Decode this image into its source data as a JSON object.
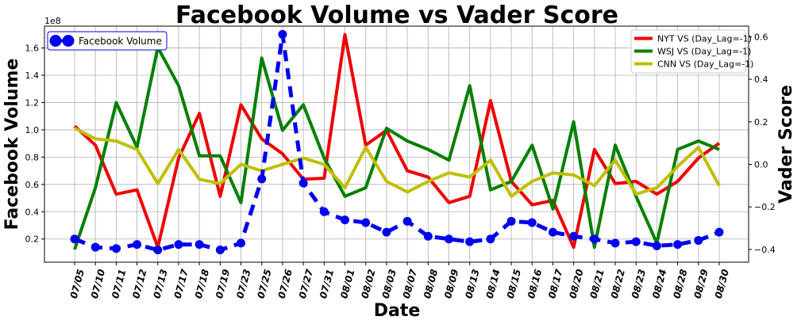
{
  "chart_data": {
    "type": "line",
    "title": "Facebook Volume vs Vader Score",
    "xlabel": "Date",
    "ylabel_left": "Facebook Volume",
    "ylabel_right": "Vader Score",
    "left_axis_multiplier": "1e8",
    "categories": [
      "07/05",
      "07/10",
      "07/11",
      "07/12",
      "07/13",
      "07/17",
      "07/18",
      "07/19",
      "07/23",
      "07/25",
      "07/26",
      "07/27",
      "07/31",
      "08/01",
      "08/02",
      "08/03",
      "08/07",
      "08/08",
      "08/09",
      "08/13",
      "08/14",
      "08/15",
      "08/16",
      "08/17",
      "08/20",
      "08/21",
      "08/22",
      "08/23",
      "08/24",
      "08/28",
      "08/29",
      "08/30"
    ],
    "ylim_left": [
      0.03,
      1.76
    ],
    "ylim_right": [
      -0.46,
      0.65
    ],
    "yticks_left": [
      "0.2",
      "0.4",
      "0.6",
      "0.8",
      "1.0",
      "1.2",
      "1.4",
      "1.6"
    ],
    "yticks_right": [
      "−0.4",
      "−0.2",
      "0.0",
      "0.2",
      "0.4",
      "0.6"
    ],
    "grid": true,
    "series_left": [
      {
        "name": "Facebook Volume",
        "color": "#0000ee",
        "values": [
          0.2,
          0.14,
          0.13,
          0.16,
          0.12,
          0.16,
          0.16,
          0.12,
          0.17,
          0.64,
          1.7,
          0.61,
          0.4,
          0.34,
          0.32,
          0.25,
          0.33,
          0.22,
          0.2,
          0.18,
          0.2,
          0.33,
          0.32,
          0.25,
          0.22,
          0.2,
          0.17,
          0.18,
          0.15,
          0.16,
          0.19,
          0.25
        ]
      }
    ],
    "series_right": [
      {
        "name": "NYT VS (Day_Lag=-1)",
        "color": "#ee0000",
        "values": [
          0.18,
          0.09,
          -0.14,
          -0.12,
          -0.39,
          0.03,
          0.24,
          -0.15,
          0.28,
          0.12,
          0.05,
          -0.07,
          -0.065,
          0.61,
          0.09,
          0.16,
          -0.03,
          -0.06,
          -0.18,
          -0.15,
          0.3,
          -0.08,
          -0.19,
          -0.17,
          -0.39,
          0.07,
          -0.09,
          -0.08,
          -0.14,
          -0.08,
          0.03,
          0.1
        ],
        "color_name": "red"
      },
      {
        "name": "WSJ VS (Day_Lag=-1)",
        "color": "#007f00",
        "values": [
          -0.4,
          -0.11,
          0.29,
          0.08,
          0.55,
          0.37,
          0.04,
          0.04,
          -0.18,
          0.5,
          0.16,
          0.28,
          0.03,
          -0.15,
          -0.11,
          0.17,
          0.11,
          0.07,
          0.02,
          0.37,
          -0.12,
          -0.08,
          0.09,
          -0.21,
          0.2,
          -0.39,
          0.09,
          -0.15,
          -0.37,
          0.07,
          0.11,
          0.07
        ]
      },
      {
        "name": "CNN VS (Day_Lag=-1)",
        "color": "#bfbf00",
        "values": [
          0.17,
          0.12,
          0.11,
          0.07,
          -0.09,
          0.07,
          -0.07,
          -0.09,
          0.0,
          -0.03,
          0.0,
          0.03,
          0.0,
          -0.11,
          0.08,
          -0.08,
          -0.13,
          -0.08,
          -0.04,
          -0.06,
          0.02,
          -0.15,
          -0.08,
          -0.04,
          -0.05,
          -0.1,
          0.02,
          -0.14,
          -0.11,
          -0.01,
          0.08,
          -0.1
        ]
      }
    ],
    "legend_left_position": "top-left",
    "legend_right_position": "top-right"
  }
}
